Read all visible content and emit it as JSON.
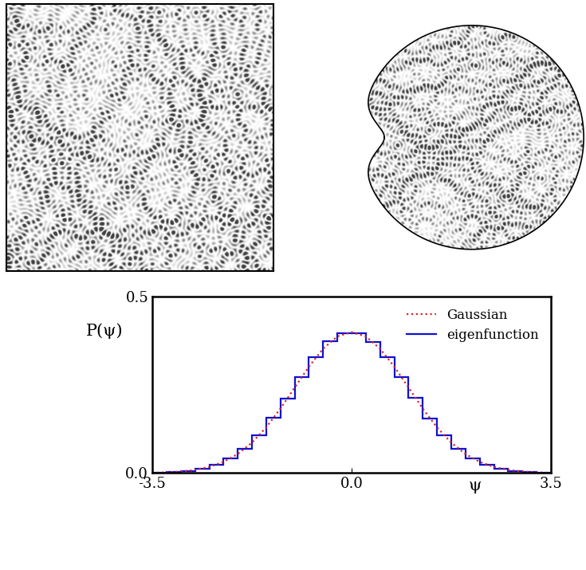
{
  "chart_data": {
    "type": "histogram",
    "xlabel": "ψ",
    "ylabel": "P(ψ)",
    "xlim": [
      -3.5,
      3.5
    ],
    "ylim": [
      0.0,
      0.5
    ],
    "xticks": [
      -3.5,
      0.0,
      3.5
    ],
    "yticks": [
      0.0,
      0.5
    ],
    "legend": "upper right",
    "series": [
      {
        "name": "Gaussian",
        "type": "line",
        "color": "#d62728",
        "line_style": "dotted",
        "x": [
          -3.5,
          -3.25,
          -3.0,
          -2.75,
          -2.5,
          -2.25,
          -2.0,
          -1.75,
          -1.5,
          -1.25,
          -1.0,
          -0.75,
          -0.5,
          -0.25,
          0.0,
          0.25,
          0.5,
          0.75,
          1.0,
          1.25,
          1.5,
          1.75,
          2.0,
          2.25,
          2.5,
          2.75,
          3.0,
          3.25,
          3.5
        ],
        "values": [
          0.0009,
          0.002,
          0.0044,
          0.0091,
          0.0175,
          0.0317,
          0.054,
          0.0863,
          0.1295,
          0.1826,
          0.242,
          0.3011,
          0.3521,
          0.3867,
          0.3989,
          0.3867,
          0.3521,
          0.3011,
          0.242,
          0.1826,
          0.1295,
          0.0863,
          0.054,
          0.0317,
          0.0175,
          0.0091,
          0.0044,
          0.002,
          0.0009
        ]
      },
      {
        "name": "eigenfunction",
        "type": "histogram",
        "color": "#1010d0",
        "line_style": "solid",
        "bins": [
          -3.5,
          -3.25,
          -3.0,
          -2.75,
          -2.5,
          -2.25,
          -2.0,
          -1.75,
          -1.5,
          -1.25,
          -1.0,
          -0.75,
          -0.5,
          -0.25,
          0.0,
          0.25,
          0.5,
          0.75,
          1.0,
          1.25,
          1.5,
          1.75,
          2.0,
          2.25,
          2.5,
          2.75,
          3.0,
          3.25,
          3.5
        ],
        "values": [
          0.0014,
          0.0031,
          0.0065,
          0.0125,
          0.024,
          0.0414,
          0.0693,
          0.1061,
          0.1558,
          0.2118,
          0.2725,
          0.3279,
          0.3722,
          0.3962,
          0.3955,
          0.3715,
          0.3285,
          0.2716,
          0.2126,
          0.155,
          0.1068,
          0.0688,
          0.0419,
          0.0236,
          0.0127,
          0.0063,
          0.0029,
          0.0013
        ]
      }
    ]
  }
}
